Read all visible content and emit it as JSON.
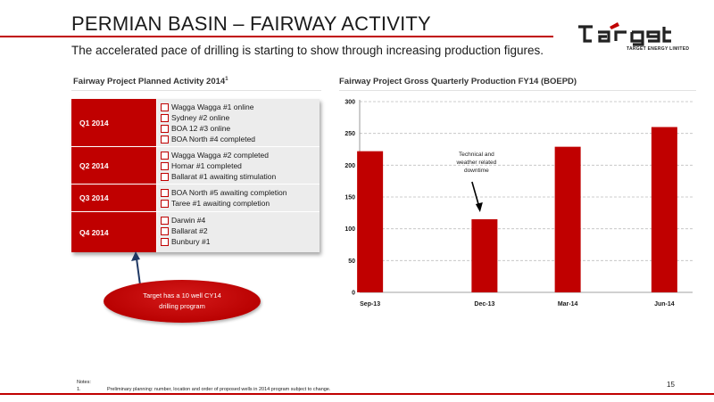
{
  "header": {
    "title": "PERMIAN BASIN – FAIRWAY ACTIVITY",
    "subtitle": "The accelerated pace of drilling is starting to show through increasing production figures."
  },
  "logo": {
    "word": "TARGET",
    "sub": "TARGET ENERGY LIMITED"
  },
  "left_panel": {
    "heading": "Fairway Project Planned Activity 2014",
    "heading_sup": "1",
    "quarters": [
      {
        "label": "Q1 2014",
        "items": [
          "Wagga Wagga #1 online",
          "Sydney #2 online",
          "BOA 12 #3 online",
          "BOA North #4 completed"
        ]
      },
      {
        "label": "Q2 2014",
        "items": [
          "Wagga Wagga #2 completed",
          "Homar #1 completed",
          "Ballarat #1 awaiting stimulation"
        ]
      },
      {
        "label": "Q3 2014",
        "items": [
          "BOA North #5 awaiting completion",
          "Taree #1 awaiting completion"
        ]
      },
      {
        "label": "Q4 2014",
        "items": [
          "Darwin #4",
          "Ballarat #2",
          "Bunbury #1"
        ]
      }
    ],
    "callout_line1": "Target has a 10 well CY14",
    "callout_line2": "drilling program"
  },
  "right_panel": {
    "heading": "Fairway Project Gross Quarterly Production FY14 (BOEPD)"
  },
  "chart_data": {
    "type": "bar",
    "categories": [
      "Sep-13",
      "Dec-13",
      "Mar-14",
      "Jun-14"
    ],
    "values": [
      222,
      115,
      229,
      260
    ],
    "ylim": [
      0,
      300
    ],
    "yticks": [
      0,
      50,
      100,
      150,
      200,
      250,
      300
    ],
    "grid": true,
    "bar_color": "#c00000",
    "annotation": {
      "lines": [
        "Technical and",
        "weather related",
        "downtime"
      ],
      "target_category": "Dec-13"
    }
  },
  "footer": {
    "notes_label": "Notes:",
    "note_number": "1.",
    "note_text": "Preliminary planning: number, location and order of proposed wells in 2014 program subject to change.",
    "page": "15"
  },
  "colors": {
    "accent": "#c00000",
    "panel": "#ececec"
  }
}
